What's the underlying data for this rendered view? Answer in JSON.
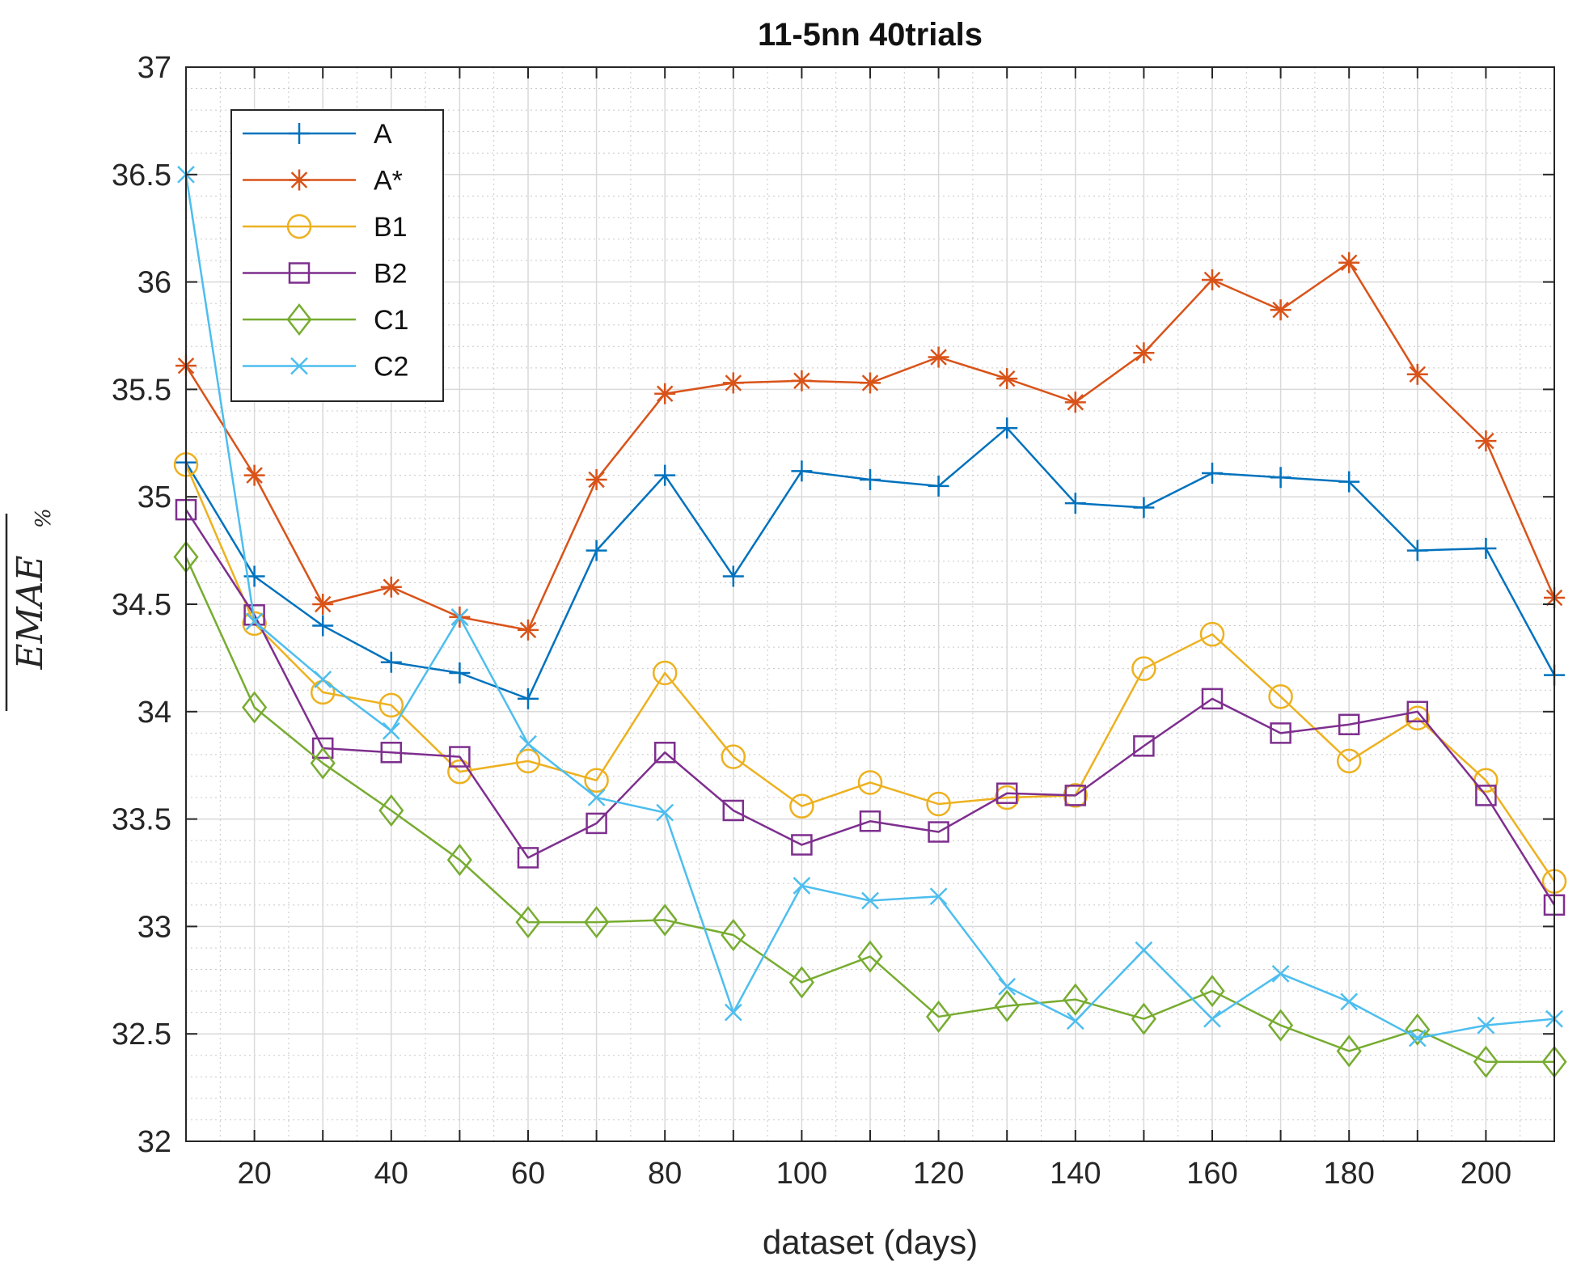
{
  "chart_data": {
    "type": "line",
    "title": "11-5nn 40trials",
    "xlabel": "dataset (days)",
    "ylabel": "EMAE",
    "ylabel_subscript": "%",
    "xlim": [
      10,
      210
    ],
    "ylim": [
      32,
      37
    ],
    "xticks": [
      20,
      40,
      60,
      80,
      100,
      120,
      140,
      160,
      180,
      200
    ],
    "yticks": [
      32,
      32.5,
      33,
      33.5,
      34,
      34.5,
      35,
      35.5,
      36,
      36.5,
      37
    ],
    "ytick_labels": [
      "32",
      "32.5",
      "33",
      "33.5",
      "34",
      "34.5",
      "35",
      "35.5",
      "36",
      "36.5",
      "37"
    ],
    "grid": true,
    "minor_grid": true,
    "legend_position": "top-left",
    "x": [
      10,
      20,
      30,
      40,
      50,
      60,
      70,
      80,
      90,
      100,
      110,
      120,
      130,
      140,
      150,
      160,
      170,
      180,
      190,
      200,
      210
    ],
    "series": [
      {
        "name": "A",
        "color": "#0072BD",
        "marker": "plus",
        "values": [
          35.16,
          34.63,
          34.4,
          34.23,
          34.18,
          34.06,
          34.75,
          35.1,
          34.63,
          35.12,
          35.08,
          35.05,
          35.32,
          34.97,
          34.95,
          35.11,
          35.09,
          35.07,
          34.75,
          34.76,
          34.17
        ]
      },
      {
        "name": "A*",
        "color": "#D95319",
        "marker": "asterisk",
        "values": [
          35.61,
          35.1,
          34.5,
          34.58,
          34.44,
          34.38,
          35.08,
          35.48,
          35.53,
          35.54,
          35.53,
          35.65,
          35.55,
          35.44,
          35.67,
          36.01,
          35.87,
          36.09,
          35.57,
          35.26,
          34.53
        ]
      },
      {
        "name": "B1",
        "color": "#EDB120",
        "marker": "circle",
        "values": [
          35.15,
          34.41,
          34.09,
          34.03,
          33.72,
          33.77,
          33.68,
          34.18,
          33.79,
          33.56,
          33.67,
          33.57,
          33.6,
          33.61,
          34.2,
          34.36,
          34.07,
          33.77,
          33.97,
          33.68,
          33.21
        ]
      },
      {
        "name": "B2",
        "color": "#7E2F8E",
        "marker": "square",
        "values": [
          34.94,
          34.45,
          33.83,
          33.81,
          33.79,
          33.32,
          33.48,
          33.81,
          33.54,
          33.38,
          33.49,
          33.44,
          33.62,
          33.61,
          33.84,
          34.06,
          33.9,
          33.94,
          34.0,
          33.61,
          33.1
        ]
      },
      {
        "name": "C1",
        "color": "#77AC30",
        "marker": "diamond",
        "values": [
          34.72,
          34.02,
          33.76,
          33.54,
          33.31,
          33.02,
          33.02,
          33.03,
          32.96,
          32.74,
          32.86,
          32.58,
          32.63,
          32.66,
          32.57,
          32.7,
          32.54,
          32.42,
          32.52,
          32.37,
          32.37
        ]
      },
      {
        "name": "C2",
        "color": "#4DBEEE",
        "marker": "cross",
        "values": [
          36.5,
          34.42,
          34.15,
          33.91,
          34.44,
          33.85,
          33.6,
          33.53,
          32.6,
          33.19,
          33.12,
          33.14,
          32.72,
          32.56,
          32.89,
          32.57,
          32.78,
          32.65,
          32.48,
          32.54,
          32.57
        ]
      }
    ]
  }
}
